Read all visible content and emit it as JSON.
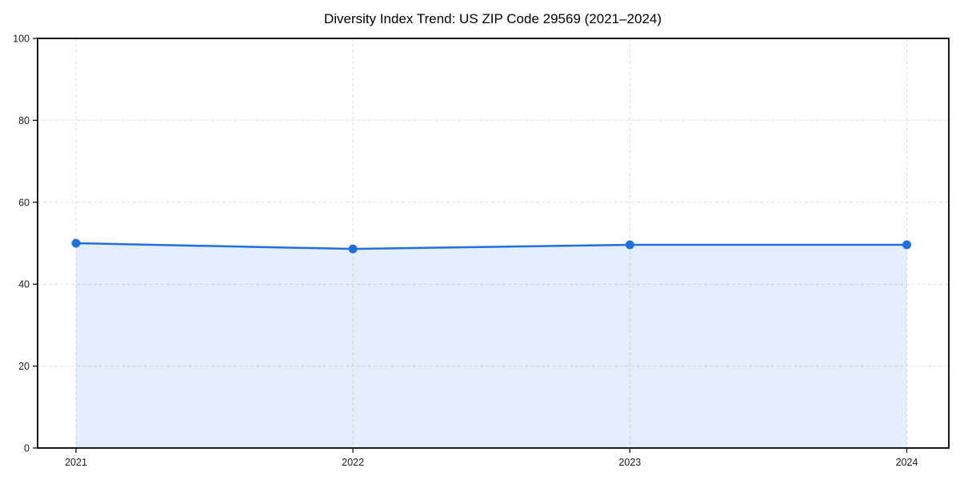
{
  "page": {
    "background": "#ffffff"
  },
  "chart_data": {
    "type": "area",
    "title": "Diversity Index Trend: US ZIP Code 29569 (2021–2024)",
    "x": [
      "2021",
      "2022",
      "2023",
      "2024"
    ],
    "series": [
      {
        "name": "Diversity Index",
        "values": [
          50.0,
          48.6,
          49.6,
          49.6
        ]
      }
    ],
    "xlabel": "",
    "ylabel": "",
    "ylim": [
      0,
      100
    ],
    "yticks": [
      0,
      20,
      40,
      60,
      80,
      100
    ],
    "grid": "dashed-horizontal-and-vertical",
    "legend": "none",
    "marker": "circle",
    "colors": {
      "line": "#1f6fe0",
      "fill_opacity": 0.12,
      "grid": "#e0e0e0",
      "axis": "#000000",
      "tick_text": "#1a1a1a",
      "title_text": "#000000"
    }
  }
}
